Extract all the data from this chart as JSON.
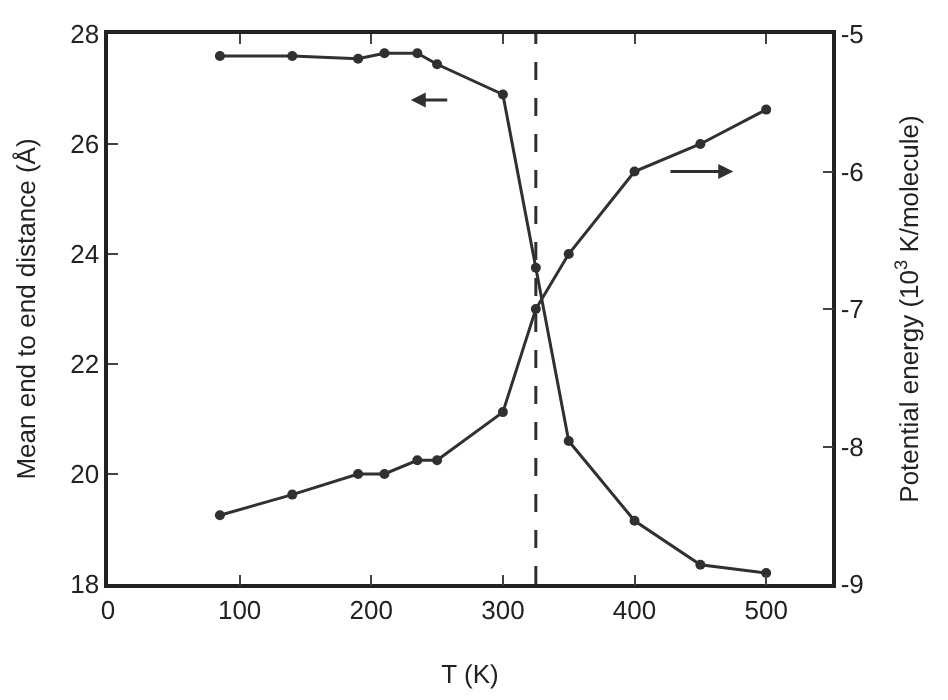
{
  "chart_data": {
    "type": "line",
    "xlabel": "T (K)",
    "ylabel": "Mean end to end distance (Å)",
    "y2label": "Potential energy (10$^{3}$ K/molecule)",
    "series": [
      {
        "color": "#303030",
        "x": [
          85,
          140,
          190,
          210,
          235,
          250,
          300,
          325,
          350,
          400,
          450,
          500
        ],
        "values": [
          27.6,
          27.6,
          27.55,
          27.65,
          27.65,
          27.45,
          26.9,
          23.75,
          20.6,
          19.15,
          18.35,
          18.2
        ]
      },
      {
        "color": "#303030",
        "axis": "y2",
        "x": [
          85,
          140,
          190,
          210,
          235,
          250,
          300,
          325,
          350,
          400,
          450,
          500
        ],
        "values": [
          -8.5,
          -8.35,
          -8.2,
          -8.2,
          -8.1,
          -8.1,
          -7.75,
          -7.0,
          -6.6,
          -6.0,
          -5.8,
          -5.55
        ]
      }
    ],
    "xlim": [
      0,
      550
    ],
    "xticks": [
      0,
      100,
      200,
      300,
      400,
      500
    ],
    "ylim": [
      18,
      28
    ],
    "yticks": [
      18,
      20,
      22,
      24,
      26,
      28
    ],
    "y2lim": [
      -9,
      -5
    ],
    "y2ticks": [
      -9,
      -8,
      -7,
      -6,
      -5
    ],
    "ref_lines": [
      {
        "axis": "x",
        "value": 325,
        "line_style": "dashed",
        "color": "#303030"
      }
    ],
    "marker": "circle",
    "line_style": "solid",
    "grid": false
  }
}
